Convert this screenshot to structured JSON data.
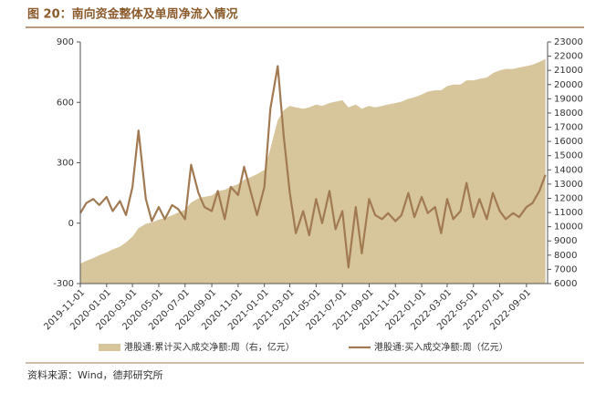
{
  "chart_data": {
    "type": "area-line",
    "title": "图 20：南向资金整体及单周净流入情况",
    "source": "资料来源：Wind，德邦研究所",
    "x": [
      "2019-11-01",
      "2019-11-15",
      "2019-12-01",
      "2019-12-15",
      "2020-01-01",
      "2020-01-15",
      "2020-02-01",
      "2020-02-15",
      "2020-03-01",
      "2020-03-15",
      "2020-04-01",
      "2020-04-15",
      "2020-05-01",
      "2020-05-15",
      "2020-06-01",
      "2020-06-15",
      "2020-07-01",
      "2020-07-15",
      "2020-08-01",
      "2020-08-15",
      "2020-09-01",
      "2020-09-15",
      "2020-10-01",
      "2020-10-15",
      "2020-11-01",
      "2020-11-15",
      "2020-12-01",
      "2020-12-15",
      "2021-01-01",
      "2021-01-15",
      "2021-02-01",
      "2021-02-15",
      "2021-03-01",
      "2021-03-15",
      "2021-04-01",
      "2021-04-15",
      "2021-05-01",
      "2021-05-15",
      "2021-06-01",
      "2021-06-15",
      "2021-07-01",
      "2021-07-15",
      "2021-08-01",
      "2021-08-15",
      "2021-09-01",
      "2021-09-15",
      "2021-10-01",
      "2021-10-15",
      "2021-11-01",
      "2021-11-15",
      "2021-12-01",
      "2021-12-15",
      "2022-01-01",
      "2022-01-15",
      "2022-02-01",
      "2022-02-15",
      "2022-03-01",
      "2022-03-15",
      "2022-04-01",
      "2022-04-15",
      "2022-05-01",
      "2022-05-15",
      "2022-06-01",
      "2022-06-15",
      "2022-07-01",
      "2022-07-15",
      "2022-08-01",
      "2022-08-15",
      "2022-09-01",
      "2022-09-15",
      "2022-10-01",
      "2022-10-15"
    ],
    "series": [
      {
        "name": "港股通:累计买入成交净额:周（右，亿元）",
        "type": "area",
        "axis": "y2",
        "color": "#d7c59c",
        "values": [
          7400,
          7600,
          7800,
          8000,
          8200,
          8400,
          8600,
          8900,
          9300,
          9900,
          10200,
          10300,
          10500,
          10600,
          10800,
          11000,
          11200,
          11700,
          12000,
          12100,
          12200,
          12500,
          12600,
          12800,
          13000,
          13300,
          13500,
          13700,
          14000,
          15500,
          17500,
          18200,
          18500,
          18400,
          18300,
          18400,
          18600,
          18500,
          18700,
          18800,
          18900,
          18400,
          18600,
          18300,
          18500,
          18400,
          18500,
          18600,
          18700,
          18800,
          19000,
          19100,
          19300,
          19500,
          19600,
          19600,
          19900,
          20000,
          20000,
          20300,
          20300,
          20400,
          20500,
          20800,
          21000,
          21100,
          21100,
          21200,
          21300,
          21400,
          21600,
          21800
        ]
      },
      {
        "name": "港股通:买入成交净额:周（亿元）",
        "type": "line",
        "color": "#a27a52",
        "values": [
          50,
          100,
          120,
          90,
          130,
          60,
          110,
          40,
          180,
          460,
          120,
          10,
          80,
          20,
          90,
          70,
          20,
          290,
          150,
          80,
          60,
          160,
          20,
          180,
          140,
          280,
          150,
          40,
          180,
          570,
          780,
          430,
          150,
          -50,
          60,
          -60,
          120,
          0,
          160,
          -30,
          60,
          -220,
          80,
          -150,
          120,
          40,
          20,
          50,
          10,
          40,
          150,
          30,
          130,
          50,
          80,
          -50,
          120,
          20,
          60,
          200,
          30,
          120,
          20,
          150,
          60,
          20,
          50,
          30,
          80,
          100,
          160,
          240
        ]
      }
    ],
    "xlim": [
      "2019-11-01",
      "2022-10-20"
    ],
    "xticks": [
      "2019-11-01",
      "2020-01-01",
      "2020-03-01",
      "2020-05-01",
      "2020-07-01",
      "2020-09-01",
      "2020-11-01",
      "2021-01-01",
      "2021-03-01",
      "2021-05-01",
      "2021-07-01",
      "2021-09-01",
      "2021-11-01",
      "2022-01-01",
      "2022-03-01",
      "2022-05-01",
      "2022-07-01",
      "2022-09-01"
    ],
    "ylim": [
      -300,
      900
    ],
    "yticks": [
      -300,
      0,
      300,
      600,
      900
    ],
    "y2lim": [
      6000,
      23000
    ],
    "y2ticks": [
      6000,
      7000,
      8000,
      9000,
      10000,
      11000,
      12000,
      13000,
      14000,
      15000,
      16000,
      17000,
      18000,
      19000,
      20000,
      21000,
      22000,
      23000
    ]
  }
}
